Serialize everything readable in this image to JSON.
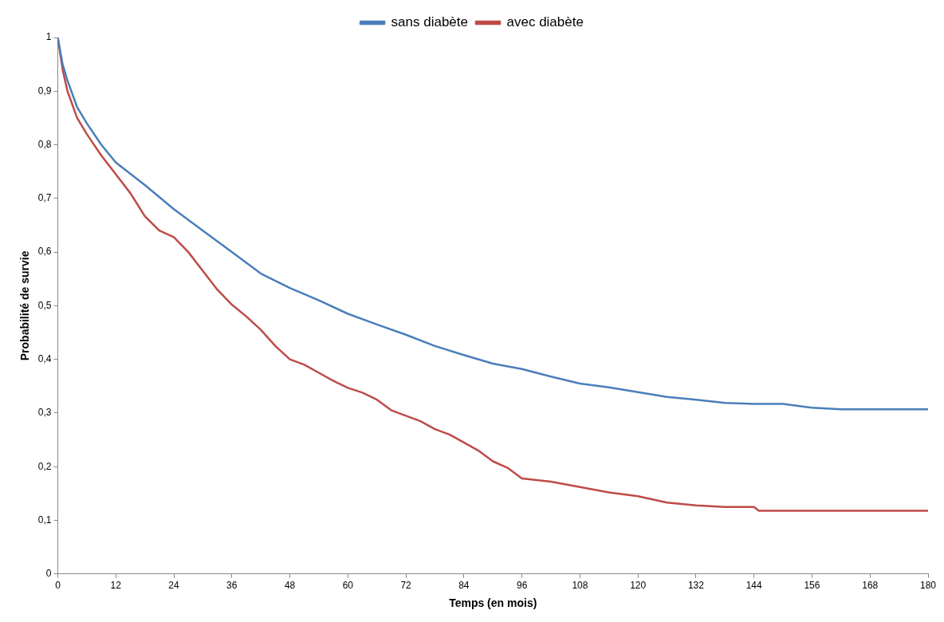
{
  "chart_data": {
    "type": "line",
    "xlabel": "Temps (en mois)",
    "ylabel": "Probabilité de survie",
    "legend": "top",
    "grid": false,
    "marker": "none",
    "line_style": "solid",
    "xlim": [
      0,
      180
    ],
    "xticks": [
      0,
      12,
      24,
      36,
      48,
      60,
      72,
      84,
      96,
      108,
      120,
      132,
      144,
      156,
      168,
      180
    ],
    "ylim": [
      0,
      1
    ],
    "yticks": [
      0,
      {
        "value": 0.1,
        "label": "0,1"
      },
      {
        "value": 0.2,
        "label": "0,2"
      },
      {
        "value": 0.3,
        "label": "0,3"
      },
      {
        "value": 0.4,
        "label": "0,4"
      },
      {
        "value": 0.5,
        "label": "0,5"
      },
      {
        "value": 0.6,
        "label": "0,6"
      },
      {
        "value": 0.7,
        "label": "0,7"
      },
      {
        "value": 0.8,
        "label": "0,8"
      },
      {
        "value": 0.9,
        "label": "0,9"
      },
      1
    ],
    "series": [
      {
        "name": "sans diabète",
        "color": "#4a7ebb",
        "x": [
          0,
          1,
          2,
          4,
          6,
          9,
          12,
          18,
          24,
          30,
          36,
          42,
          48,
          54,
          60,
          66,
          72,
          78,
          84,
          90,
          96,
          102,
          108,
          114,
          120,
          126,
          132,
          138,
          144,
          150,
          156,
          162,
          168,
          180
        ],
        "values": [
          1,
          0.95,
          0.92,
          0.87,
          0.84,
          0.8,
          0.767,
          0.725,
          0.68,
          0.64,
          0.6,
          0.56,
          0.533,
          0.51,
          0.485,
          0.465,
          0.446,
          0.425,
          0.408,
          0.392,
          0.382,
          0.368,
          0.355,
          0.348,
          0.339,
          0.33,
          0.325,
          0.319,
          0.317,
          0.317,
          0.31,
          0.307,
          0.307,
          0.307
        ]
      },
      {
        "name": "avec diabète",
        "color": "#be4b48",
        "x": [
          0,
          1,
          2,
          4,
          6,
          9,
          12,
          15,
          18,
          21,
          24,
          27,
          30,
          33,
          36,
          39,
          42,
          45,
          48,
          51,
          54,
          57,
          60,
          63,
          66,
          69,
          72,
          75,
          78,
          81,
          84,
          87,
          90,
          93,
          96,
          102,
          108,
          114,
          120,
          126,
          132,
          138,
          144,
          145,
          150,
          165,
          180
        ],
        "values": [
          1,
          0.94,
          0.9,
          0.85,
          0.82,
          0.78,
          0.745,
          0.71,
          0.667,
          0.64,
          0.628,
          0.6,
          0.565,
          0.53,
          0.502,
          0.48,
          0.455,
          0.425,
          0.4,
          0.39,
          0.375,
          0.36,
          0.347,
          0.338,
          0.325,
          0.305,
          0.295,
          0.285,
          0.27,
          0.26,
          0.245,
          0.23,
          0.21,
          0.198,
          0.178,
          0.172,
          0.162,
          0.152,
          0.145,
          0.133,
          0.128,
          0.125,
          0.125,
          0.118,
          0.118,
          0.118,
          0.118
        ]
      }
    ]
  }
}
